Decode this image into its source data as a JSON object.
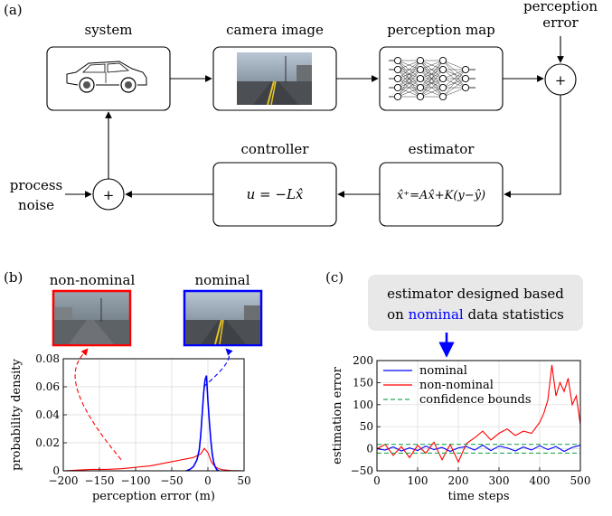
{
  "panel_labels": {
    "a": "(a)",
    "b": "(b)",
    "c": "(c)"
  },
  "diagram": {
    "system": "system",
    "camera": "camera image",
    "perception_map": "perception map",
    "perception_error_1": "perception",
    "perception_error_2": "error",
    "controller": "controller",
    "controller_eq": "u = −Lx̂",
    "estimator": "estimator",
    "estimator_eq": "x̂⁺=Ax̂+K(y−ŷ)",
    "process_noise_1": "process",
    "process_noise_2": "noise",
    "sum_symbol": "+"
  },
  "panel_b": {
    "nonnominal_label": "non-nominal",
    "nominal_label": "nominal",
    "colors": {
      "nonnominal": "#ff0000",
      "nominal": "#0000ff"
    }
  },
  "panel_c": {
    "callout_line1": "estimator designed based",
    "callout_pre": "on ",
    "callout_highlight": "nominal",
    "callout_post": " data statistics"
  },
  "chart_data": [
    {
      "type": "line",
      "xlabel": "perception error (m)",
      "ylabel": "probability density",
      "xlim": [
        -200,
        50
      ],
      "ylim": [
        0,
        0.08
      ],
      "xticks": [
        -200,
        -150,
        -100,
        -50,
        0,
        50
      ],
      "yticks": [
        0,
        0.02,
        0.04,
        0.06,
        0.08
      ],
      "grid": true,
      "series": [
        {
          "name": "non-nominal",
          "color": "#ff0000",
          "x": [
            -200,
            -180,
            -160,
            -140,
            -120,
            -110,
            -100,
            -90,
            -80,
            -70,
            -60,
            -50,
            -40,
            -30,
            -20,
            -10,
            -5,
            0,
            5,
            10,
            15,
            20,
            30,
            40,
            50
          ],
          "y": [
            0.0,
            0.0005,
            0.001,
            0.001,
            0.0015,
            0.002,
            0.0025,
            0.003,
            0.0035,
            0.0045,
            0.0055,
            0.0065,
            0.0075,
            0.0085,
            0.0095,
            0.012,
            0.016,
            0.013,
            0.006,
            0.003,
            0.0015,
            0.0008,
            0.0003,
            0.0001,
            0.0
          ]
        },
        {
          "name": "nominal",
          "color": "#0000ff",
          "x": [
            -30,
            -25,
            -20,
            -15,
            -12,
            -10,
            -8,
            -6,
            -4,
            -2,
            0,
            2,
            4,
            6,
            8,
            10,
            12,
            15
          ],
          "y": [
            0.0,
            0.001,
            0.003,
            0.008,
            0.015,
            0.025,
            0.04,
            0.055,
            0.065,
            0.068,
            0.05,
            0.035,
            0.022,
            0.012,
            0.006,
            0.003,
            0.001,
            0.0
          ]
        }
      ]
    },
    {
      "type": "line",
      "xlabel": "time steps",
      "ylabel": "estimation error",
      "xlim": [
        0,
        500
      ],
      "ylim": [
        -50,
        200
      ],
      "xticks": [
        0,
        100,
        200,
        300,
        400,
        500
      ],
      "yticks": [
        -50,
        0,
        50,
        100,
        150,
        200
      ],
      "grid": true,
      "legend": "top-left",
      "series": [
        {
          "name": "nominal",
          "color": "#0000ff",
          "x": [
            0,
            20,
            40,
            60,
            80,
            100,
            120,
            140,
            160,
            180,
            200,
            220,
            240,
            260,
            280,
            300,
            320,
            340,
            360,
            380,
            400,
            420,
            440,
            460,
            480,
            500
          ],
          "y": [
            0,
            -3,
            4,
            -5,
            2,
            -4,
            6,
            -2,
            3,
            -6,
            2,
            5,
            -3,
            8,
            -4,
            6,
            2,
            -5,
            4,
            -3,
            7,
            -2,
            5,
            -6,
            3,
            8
          ]
        },
        {
          "name": "non-nominal",
          "color": "#ff0000",
          "x": [
            0,
            20,
            40,
            60,
            80,
            100,
            120,
            140,
            160,
            180,
            200,
            220,
            240,
            260,
            280,
            300,
            320,
            340,
            360,
            380,
            400,
            410,
            420,
            430,
            440,
            450,
            460,
            470,
            480,
            490,
            500
          ],
          "y": [
            0,
            10,
            -15,
            5,
            -20,
            8,
            -10,
            15,
            -25,
            10,
            -30,
            12,
            25,
            40,
            20,
            35,
            45,
            30,
            40,
            35,
            60,
            80,
            110,
            190,
            120,
            150,
            130,
            160,
            100,
            120,
            55
          ]
        },
        {
          "name": "confidence bounds",
          "color": "#22aa55",
          "x": [
            0,
            500
          ],
          "y": [
            10,
            10
          ]
        },
        {
          "name": "",
          "color": "#22aa55",
          "x": [
            0,
            500
          ],
          "y": [
            -10,
            -10
          ]
        }
      ]
    }
  ]
}
